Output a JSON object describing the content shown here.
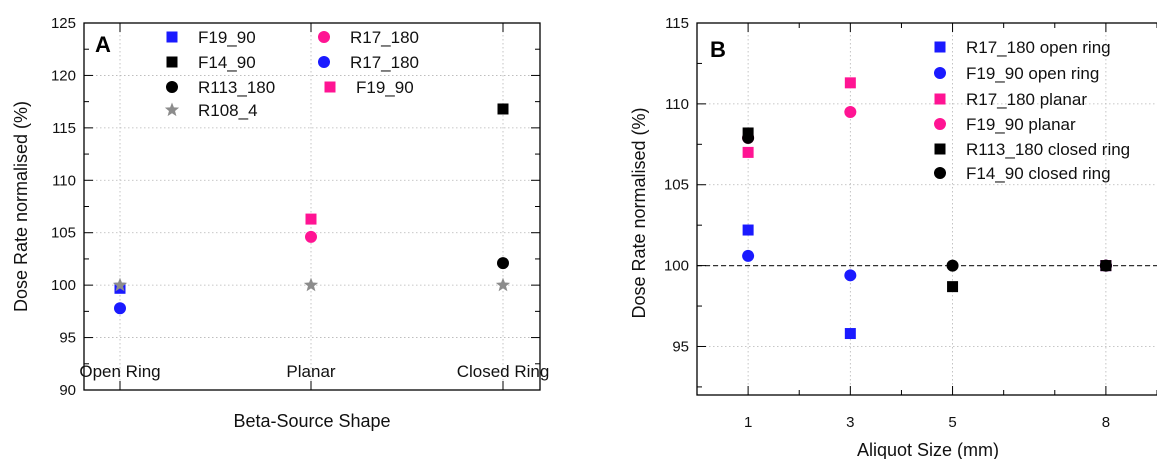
{
  "chart_data": [
    {
      "type": "scatter",
      "panel_label": "A",
      "xlabel": "Beta-Source Shape",
      "ylabel": "Dose Rate normalised (%)",
      "categories": [
        "Open Ring",
        "Planar",
        "Closed Ring"
      ],
      "ylim": [
        90,
        125
      ],
      "yticks": [
        90,
        95,
        100,
        105,
        110,
        115,
        120,
        125
      ],
      "grid": true,
      "legend_position": "top",
      "series": [
        {
          "name": "F19_90",
          "marker": "square",
          "color": "#1a1aff",
          "points": [
            {
              "x": "Open Ring",
              "y": 99.7
            }
          ]
        },
        {
          "name": "F14_90",
          "marker": "square",
          "color": "#000000",
          "points": [
            {
              "x": "Closed Ring",
              "y": 116.8
            }
          ]
        },
        {
          "name": "R113_180",
          "marker": "circle",
          "color": "#000000",
          "points": [
            {
              "x": "Closed Ring",
              "y": 102.1
            }
          ]
        },
        {
          "name": "R108_4",
          "marker": "star",
          "color": "#8c8c8c",
          "points": [
            {
              "x": "Open Ring",
              "y": 100.0
            },
            {
              "x": "Planar",
              "y": 100.0
            },
            {
              "x": "Closed Ring",
              "y": 100.0
            }
          ]
        },
        {
          "name": "R17_180",
          "marker": "circle",
          "color": "#ff1493",
          "points": [
            {
              "x": "Planar",
              "y": 104.6
            }
          ]
        },
        {
          "name": "R17_180",
          "marker": "circle",
          "color": "#1a1aff",
          "points": [
            {
              "x": "Open Ring",
              "y": 97.8
            }
          ]
        },
        {
          "name": "F19_90",
          "marker": "square",
          "color": "#ff1493",
          "points": [
            {
              "x": "Planar",
              "y": 106.3
            }
          ]
        }
      ]
    },
    {
      "type": "scatter",
      "panel_label": "B",
      "xlabel": "Aliquot Size (mm)",
      "ylabel": "Dose Rate normalised (%)",
      "xlim": [
        0,
        9
      ],
      "xticks": [
        1,
        3,
        5,
        8
      ],
      "ylim": [
        92,
        115
      ],
      "yticks": [
        95,
        100,
        105,
        110,
        115
      ],
      "grid": true,
      "reference_line": 100,
      "legend_position": "top-right",
      "series": [
        {
          "name": "R17_180 open ring",
          "marker": "square",
          "color": "#1a1aff",
          "points": [
            [
              1,
              102.2
            ],
            [
              3,
              95.8
            ],
            [
              8,
              100.0
            ]
          ]
        },
        {
          "name": "F19_90 open ring",
          "marker": "circle",
          "color": "#1a1aff",
          "points": [
            [
              1,
              100.6
            ],
            [
              3,
              99.4
            ],
            [
              8,
              100.0
            ]
          ]
        },
        {
          "name": "R17_180 planar",
          "marker": "square",
          "color": "#ff1493",
          "points": [
            [
              1,
              107.0
            ],
            [
              3,
              111.3
            ],
            [
              8,
              100.0
            ]
          ]
        },
        {
          "name": "F19_90 planar",
          "marker": "circle",
          "color": "#ff1493",
          "points": [
            [
              1,
              107.9
            ],
            [
              3,
              109.5
            ],
            [
              8,
              100.0
            ]
          ]
        },
        {
          "name": "R113_180 closed ring",
          "marker": "square",
          "color": "#000000",
          "points": [
            [
              1,
              108.2
            ],
            [
              5,
              98.7
            ],
            [
              8,
              100.0
            ]
          ]
        },
        {
          "name": "F14_90 closed ring",
          "marker": "circle",
          "color": "#000000",
          "points": [
            [
              1,
              107.9
            ],
            [
              5,
              100.0
            ],
            [
              8,
              100.0
            ]
          ]
        }
      ]
    }
  ]
}
